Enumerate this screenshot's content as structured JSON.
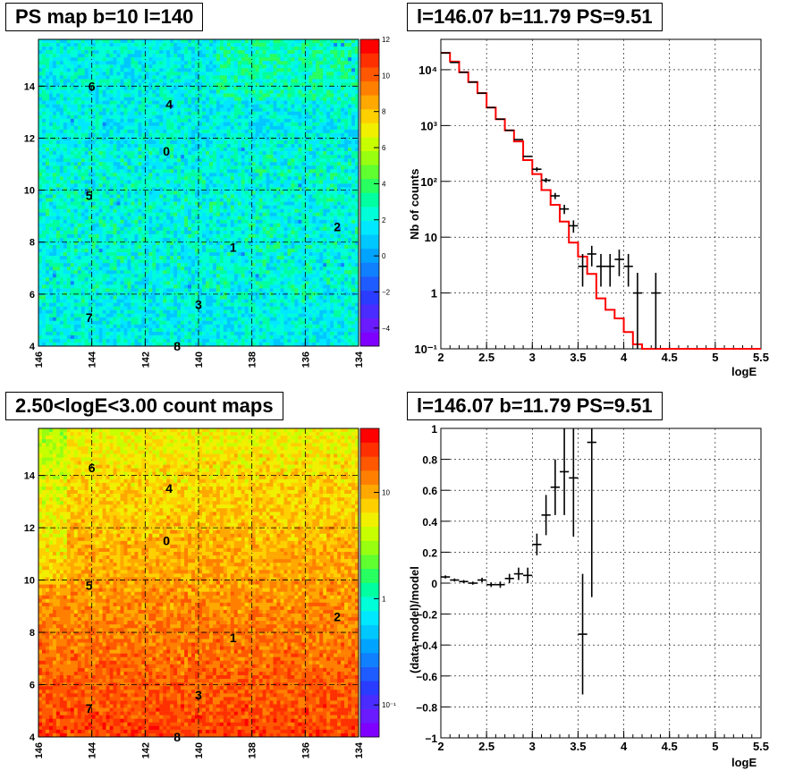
{
  "chart_data": [
    {
      "type": "heatmap",
      "title": "PS map b=10 l=140",
      "x_ticks": [
        "146",
        "144",
        "142",
        "140",
        "138",
        "136",
        "134"
      ],
      "xlim": [
        146,
        134
      ],
      "y_ticks": [
        "4",
        "6",
        "8",
        "10",
        "12",
        "14"
      ],
      "ylim": [
        4,
        15.8
      ],
      "colorbar": {
        "ticks": [
          "12",
          "10",
          "8",
          "6",
          "4",
          "2",
          "0",
          "−2",
          "−4"
        ],
        "range": [
          -5,
          12
        ],
        "scale": "linear"
      },
      "background_level": 0.5,
      "labels": [
        {
          "text": "6",
          "l": 144.0,
          "b": 14.0
        },
        {
          "text": "4",
          "l": 141.1,
          "b": 13.3
        },
        {
          "text": "0",
          "l": 141.2,
          "b": 11.5
        },
        {
          "text": "5",
          "l": 144.1,
          "b": 9.8
        },
        {
          "text": "2",
          "l": 134.8,
          "b": 8.6
        },
        {
          "text": "1",
          "l": 138.7,
          "b": 7.8
        },
        {
          "text": "3",
          "l": 140.0,
          "b": 5.6
        },
        {
          "text": "7",
          "l": 144.1,
          "b": 5.1
        },
        {
          "text": "8",
          "l": 140.8,
          "b": 4.0
        }
      ],
      "grid": true
    },
    {
      "type": "line",
      "title": "l=146.07 b=11.79 PS=9.51",
      "xlabel": "logE",
      "ylabel": "Nb of counts",
      "x_ticks": [
        "2",
        "2.5",
        "3",
        "3.5",
        "4",
        "4.5",
        "5",
        "5.5"
      ],
      "xlim": [
        2,
        5.5
      ],
      "y_ticks": [
        "10⁻¹",
        "1",
        "10",
        "10²",
        "10³",
        "10⁴"
      ],
      "ylim": [
        0.1,
        35000
      ],
      "yscale": "log",
      "model_color": "#ff0000",
      "model_steps": [
        {
          "x0": 2.0,
          "x1": 2.1,
          "y": 20000
        },
        {
          "x0": 2.1,
          "x1": 2.2,
          "y": 14000
        },
        {
          "x0": 2.2,
          "x1": 2.3,
          "y": 9000
        },
        {
          "x0": 2.3,
          "x1": 2.4,
          "y": 6000
        },
        {
          "x0": 2.4,
          "x1": 2.5,
          "y": 3800
        },
        {
          "x0": 2.5,
          "x1": 2.6,
          "y": 2100
        },
        {
          "x0": 2.6,
          "x1": 2.7,
          "y": 1300
        },
        {
          "x0": 2.7,
          "x1": 2.8,
          "y": 820
        },
        {
          "x0": 2.8,
          "x1": 2.9,
          "y": 520
        },
        {
          "x0": 2.9,
          "x1": 3.0,
          "y": 240
        },
        {
          "x0": 3.0,
          "x1": 3.1,
          "y": 135
        },
        {
          "x0": 3.1,
          "x1": 3.2,
          "y": 70
        },
        {
          "x0": 3.2,
          "x1": 3.3,
          "y": 38
        },
        {
          "x0": 3.3,
          "x1": 3.4,
          "y": 19
        },
        {
          "x0": 3.4,
          "x1": 3.5,
          "y": 8
        },
        {
          "x0": 3.5,
          "x1": 3.6,
          "y": 4.5
        },
        {
          "x0": 3.6,
          "x1": 3.7,
          "y": 2.2
        },
        {
          "x0": 3.7,
          "x1": 3.8,
          "y": 0.8
        },
        {
          "x0": 3.8,
          "x1": 3.9,
          "y": 0.5
        },
        {
          "x0": 3.9,
          "x1": 4.0,
          "y": 0.35
        },
        {
          "x0": 4.0,
          "x1": 4.1,
          "y": 0.2
        },
        {
          "x0": 4.1,
          "x1": 4.2,
          "y": 0.12
        },
        {
          "x0": 4.2,
          "x1": 5.5,
          "y": 0.1
        }
      ],
      "data_points": [
        {
          "x": 2.05,
          "y": 20000
        },
        {
          "x": 2.15,
          "y": 13500
        },
        {
          "x": 2.25,
          "y": 9000
        },
        {
          "x": 2.35,
          "y": 6000
        },
        {
          "x": 2.45,
          "y": 3800
        },
        {
          "x": 2.55,
          "y": 2100
        },
        {
          "x": 2.65,
          "y": 1300
        },
        {
          "x": 2.75,
          "y": 820
        },
        {
          "x": 2.85,
          "y": 560
        },
        {
          "x": 2.95,
          "y": 280
        },
        {
          "x": 3.05,
          "y": 165,
          "ylo": 150,
          "yhi": 180
        },
        {
          "x": 3.15,
          "y": 105,
          "ylo": 95,
          "yhi": 115
        },
        {
          "x": 3.25,
          "y": 55,
          "ylo": 48,
          "yhi": 62
        },
        {
          "x": 3.35,
          "y": 32,
          "ylo": 26,
          "yhi": 38
        },
        {
          "x": 3.45,
          "y": 16,
          "ylo": 12,
          "yhi": 20
        },
        {
          "x": 3.55,
          "y": 3,
          "ylo": 1.3,
          "yhi": 5
        },
        {
          "x": 3.65,
          "y": 5,
          "ylo": 3,
          "yhi": 7
        },
        {
          "x": 3.75,
          "y": 3,
          "ylo": 1.3,
          "yhi": 5
        },
        {
          "x": 3.85,
          "y": 3,
          "ylo": 1.3,
          "yhi": 5
        },
        {
          "x": 3.95,
          "y": 4,
          "ylo": 2,
          "yhi": 6
        },
        {
          "x": 4.05,
          "y": 3,
          "ylo": 1.3,
          "yhi": 5
        },
        {
          "x": 4.15,
          "y": 1,
          "ylo": 0.1,
          "yhi": 2.3
        },
        {
          "x": 4.35,
          "y": 1,
          "ylo": 0.1,
          "yhi": 2.3
        }
      ],
      "grid": true
    },
    {
      "type": "heatmap",
      "title": "2.50<logE<3.00 count maps",
      "x_ticks": [
        "146",
        "144",
        "142",
        "140",
        "138",
        "136",
        "134"
      ],
      "xlim": [
        146,
        134
      ],
      "y_ticks": [
        "4",
        "6",
        "8",
        "10",
        "12",
        "14"
      ],
      "ylim": [
        4,
        15.8
      ],
      "colorbar": {
        "ticks": [
          "10",
          "1",
          "10⁻¹"
        ],
        "range": [
          0.05,
          40
        ],
        "scale": "log"
      },
      "labels": [
        {
          "text": "6",
          "l": 144.0,
          "b": 14.3
        },
        {
          "text": "4",
          "l": 141.1,
          "b": 13.5
        },
        {
          "text": "0",
          "l": 141.2,
          "b": 11.5
        },
        {
          "text": "5",
          "l": 144.1,
          "b": 9.8
        },
        {
          "text": "2",
          "l": 134.8,
          "b": 8.6
        },
        {
          "text": "1",
          "l": 138.7,
          "b": 7.8
        },
        {
          "text": "3",
          "l": 140.0,
          "b": 5.6
        },
        {
          "text": "7",
          "l": 144.1,
          "b": 5.1
        },
        {
          "text": "8",
          "l": 140.8,
          "b": 4.0
        }
      ],
      "grid": true
    },
    {
      "type": "scatter",
      "title": "l=146.07 b=11.79 PS=9.51",
      "xlabel": "logE",
      "ylabel": "(data-model)/model",
      "x_ticks": [
        "2",
        "2.5",
        "3",
        "3.5",
        "4",
        "4.5",
        "5",
        "5.5"
      ],
      "xlim": [
        2,
        5.5
      ],
      "y_ticks": [
        "−1",
        "−0.8",
        "−0.6",
        "−0.4",
        "−0.2",
        "0",
        "0.2",
        "0.4",
        "0.6",
        "0.8",
        "1"
      ],
      "ylim": [
        -1,
        1
      ],
      "points": [
        {
          "x": 2.05,
          "y": 0.04,
          "err": 0.01
        },
        {
          "x": 2.15,
          "y": 0.02,
          "err": 0.01
        },
        {
          "x": 2.25,
          "y": 0.01,
          "err": 0.01
        },
        {
          "x": 2.35,
          "y": 0.0,
          "err": 0.01
        },
        {
          "x": 2.45,
          "y": 0.02,
          "err": 0.015
        },
        {
          "x": 2.55,
          "y": -0.01,
          "err": 0.015
        },
        {
          "x": 2.65,
          "y": -0.01,
          "err": 0.02
        },
        {
          "x": 2.75,
          "y": 0.03,
          "err": 0.03
        },
        {
          "x": 2.85,
          "y": 0.06,
          "err": 0.04
        },
        {
          "x": 2.95,
          "y": 0.05,
          "err": 0.05
        },
        {
          "x": 3.05,
          "y": 0.25,
          "err": 0.07
        },
        {
          "x": 3.15,
          "y": 0.44,
          "err": 0.13
        },
        {
          "x": 3.25,
          "y": 0.62,
          "err": 0.18
        },
        {
          "x": 3.35,
          "y": 0.72,
          "err": 0.28
        },
        {
          "x": 3.45,
          "y": 0.68,
          "err": 0.38
        },
        {
          "x": 3.55,
          "y": -0.33,
          "err": 0.39
        },
        {
          "x": 3.65,
          "y": 0.91,
          "err": 1.0
        }
      ],
      "grid": true
    }
  ]
}
